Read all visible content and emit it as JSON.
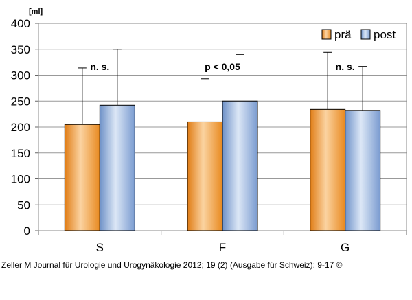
{
  "chart_data": {
    "type": "bar",
    "ylabel": "[ml]",
    "ylim": [
      0,
      400
    ],
    "yticks": [
      0,
      50,
      100,
      150,
      200,
      250,
      300,
      350,
      400
    ],
    "categories": [
      "S",
      "F",
      "G"
    ],
    "series": [
      {
        "name": "prä",
        "values": [
          205,
          210,
          234
        ],
        "error_upper": [
          314,
          293,
          344
        ]
      },
      {
        "name": "post",
        "values": [
          242,
          250,
          232
        ],
        "error_upper": [
          350,
          340,
          317
        ]
      }
    ],
    "annotations": [
      "n. s.",
      "p < 0,05",
      "n. s."
    ],
    "legend": "top-right",
    "grid": true,
    "colors": {
      "pra": "#f5a84e",
      "post": "#a9c4e8",
      "grid": "#999999"
    }
  },
  "source_text": "Zeller M Journal für Urologie und Urogynäkologie 2012; 19 (2) (Ausgabe für Schweiz): 9-17 ©"
}
